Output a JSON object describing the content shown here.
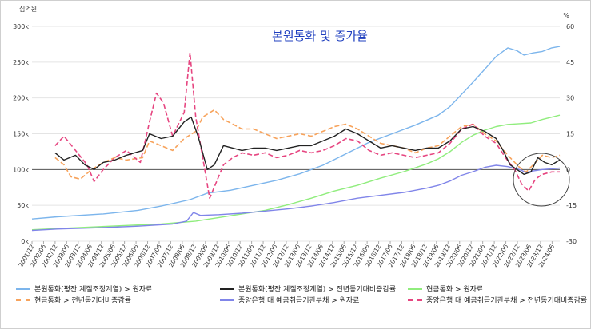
{
  "chart_data": {
    "type": "line",
    "title": "본원통화 및 증가율",
    "left_axis_unit": "십억원",
    "right_axis_unit": "%",
    "left_ticks": [
      {
        "v": 0,
        "label": "0k"
      },
      {
        "v": 50,
        "label": "50k"
      },
      {
        "v": 100,
        "label": "100k"
      },
      {
        "v": 150,
        "label": "150k"
      },
      {
        "v": 200,
        "label": "200k"
      },
      {
        "v": 250,
        "label": "250k"
      },
      {
        "v": 300,
        "label": "300k"
      }
    ],
    "right_ticks": [
      {
        "v": -30,
        "label": "-30"
      },
      {
        "v": -15,
        "label": "-15"
      },
      {
        "v": 0,
        "label": "0"
      },
      {
        "v": 15,
        "label": "15"
      },
      {
        "v": 30,
        "label": "30"
      },
      {
        "v": 45,
        "label": "45"
      },
      {
        "v": 60,
        "label": "60"
      }
    ],
    "left_ylim": [
      0,
      300
    ],
    "right_ylim": [
      -30,
      60
    ],
    "x_range": [
      2001.917,
      2024.75
    ],
    "x_ticks": [
      "2001/12",
      "2002/06",
      "2002/12",
      "2003/06",
      "2003/12",
      "2004/06",
      "2004/12",
      "2005/06",
      "2005/12",
      "2006/06",
      "2006/12",
      "2007/06",
      "2007/12",
      "2008/06",
      "2008/12",
      "2009/06",
      "2009/12",
      "2010/06",
      "2010/12",
      "2011/06",
      "2011/12",
      "2012/06",
      "2012/12",
      "2013/06",
      "2013/12",
      "2014/06",
      "2014/12",
      "2015/06",
      "2015/12",
      "2016/06",
      "2016/12",
      "2017/06",
      "2017/12",
      "2018/06",
      "2018/12",
      "2019/06",
      "2019/12",
      "2020/06",
      "2020/12",
      "2021/06",
      "2021/12",
      "2022/06",
      "2022/12",
      "2023/06",
      "2023/12",
      "2024/06"
    ],
    "series": [
      {
        "name": "본원통화(평잔,계절조정계열) > 원자료",
        "axis": "left",
        "color": "#7cb5ec",
        "dash": false,
        "points": [
          [
            2001.917,
            31
          ],
          [
            2003,
            34
          ],
          [
            2005,
            38
          ],
          [
            2006.5,
            43
          ],
          [
            2007.5,
            49
          ],
          [
            2008.75,
            58
          ],
          [
            2009.5,
            67
          ],
          [
            2010.5,
            71
          ],
          [
            2011.5,
            78
          ],
          [
            2012.5,
            85
          ],
          [
            2013.5,
            94
          ],
          [
            2014.5,
            106
          ],
          [
            2015.5,
            122
          ],
          [
            2016.5,
            138
          ],
          [
            2017.5,
            150
          ],
          [
            2018.5,
            162
          ],
          [
            2019.5,
            176
          ],
          [
            2020,
            188
          ],
          [
            2020.5,
            205
          ],
          [
            2021,
            222
          ],
          [
            2021.5,
            240
          ],
          [
            2022,
            258
          ],
          [
            2022.5,
            270
          ],
          [
            2022.9,
            266
          ],
          [
            2023.2,
            260
          ],
          [
            2023.6,
            263
          ],
          [
            2024,
            265
          ],
          [
            2024.4,
            270
          ],
          [
            2024.75,
            272
          ]
        ]
      },
      {
        "name": "본원통화(평잔,계절조정계열) > 전년동기대비증감률",
        "axis": "right",
        "color": "#222222",
        "dash": false,
        "points": [
          [
            2002.917,
            7
          ],
          [
            2003.3,
            4
          ],
          [
            2003.8,
            6
          ],
          [
            2004.2,
            2
          ],
          [
            2004.6,
            0
          ],
          [
            2005,
            3
          ],
          [
            2005.5,
            4
          ],
          [
            2006,
            6
          ],
          [
            2006.7,
            8
          ],
          [
            2007,
            15
          ],
          [
            2007.5,
            13
          ],
          [
            2008,
            14
          ],
          [
            2008.5,
            20
          ],
          [
            2008.8,
            22
          ],
          [
            2009.1,
            14
          ],
          [
            2009.5,
            0
          ],
          [
            2009.8,
            2
          ],
          [
            2010.2,
            10
          ],
          [
            2010.6,
            9
          ],
          [
            2011,
            8
          ],
          [
            2011.5,
            9
          ],
          [
            2012,
            9
          ],
          [
            2012.5,
            8
          ],
          [
            2013,
            9
          ],
          [
            2013.5,
            10
          ],
          [
            2014,
            10
          ],
          [
            2014.5,
            12
          ],
          [
            2015,
            14
          ],
          [
            2015.5,
            17
          ],
          [
            2016,
            15
          ],
          [
            2016.5,
            12
          ],
          [
            2017,
            9
          ],
          [
            2017.5,
            10
          ],
          [
            2018,
            9
          ],
          [
            2018.5,
            8
          ],
          [
            2019,
            9
          ],
          [
            2019.5,
            9
          ],
          [
            2020,
            12
          ],
          [
            2020.5,
            17
          ],
          [
            2021,
            18
          ],
          [
            2021.5,
            16
          ],
          [
            2022,
            13
          ],
          [
            2022.3,
            8
          ],
          [
            2022.6,
            2
          ],
          [
            2022.9,
            0
          ],
          [
            2023.2,
            -2
          ],
          [
            2023.5,
            -1
          ],
          [
            2023.8,
            5
          ],
          [
            2024.1,
            3
          ],
          [
            2024.4,
            2
          ],
          [
            2024.75,
            4
          ]
        ]
      },
      {
        "name": "현금통화 > 원자료",
        "axis": "left",
        "color": "#90ed7d",
        "dash": false,
        "points": [
          [
            2001.917,
            16
          ],
          [
            2004,
            19
          ],
          [
            2006,
            22
          ],
          [
            2007.5,
            24
          ],
          [
            2009,
            28
          ],
          [
            2010,
            33
          ],
          [
            2011,
            38
          ],
          [
            2012,
            43
          ],
          [
            2013,
            51
          ],
          [
            2014,
            60
          ],
          [
            2015,
            70
          ],
          [
            2016,
            78
          ],
          [
            2017,
            88
          ],
          [
            2018,
            97
          ],
          [
            2019,
            108
          ],
          [
            2019.5,
            115
          ],
          [
            2020,
            125
          ],
          [
            2020.5,
            138
          ],
          [
            2021,
            148
          ],
          [
            2021.5,
            155
          ],
          [
            2022,
            160
          ],
          [
            2022.5,
            163
          ],
          [
            2023,
            164
          ],
          [
            2023.5,
            165
          ],
          [
            2024,
            170
          ],
          [
            2024.75,
            176
          ]
        ]
      },
      {
        "name": "현금통화 > 전년동기대비증감률",
        "axis": "right",
        "color": "#f7a35c",
        "dash": true,
        "points": [
          [
            2002.917,
            5
          ],
          [
            2003.3,
            2
          ],
          [
            2003.6,
            -3
          ],
          [
            2004,
            -4
          ],
          [
            2004.5,
            0
          ],
          [
            2005,
            3
          ],
          [
            2005.5,
            5
          ],
          [
            2006,
            4
          ],
          [
            2006.7,
            5
          ],
          [
            2007,
            12
          ],
          [
            2007.5,
            10
          ],
          [
            2008,
            8
          ],
          [
            2008.5,
            13
          ],
          [
            2009,
            16
          ],
          [
            2009.3,
            22
          ],
          [
            2009.8,
            25
          ],
          [
            2010.2,
            21
          ],
          [
            2010.6,
            19
          ],
          [
            2011,
            17
          ],
          [
            2011.5,
            17
          ],
          [
            2012,
            15
          ],
          [
            2012.5,
            13
          ],
          [
            2013,
            14
          ],
          [
            2013.5,
            15
          ],
          [
            2014,
            14
          ],
          [
            2014.5,
            16
          ],
          [
            2015,
            18
          ],
          [
            2015.5,
            19
          ],
          [
            2016,
            17
          ],
          [
            2016.5,
            14
          ],
          [
            2017,
            11
          ],
          [
            2017.5,
            10
          ],
          [
            2018,
            9
          ],
          [
            2018.5,
            7
          ],
          [
            2019,
            9
          ],
          [
            2019.5,
            10
          ],
          [
            2020,
            14
          ],
          [
            2020.5,
            18
          ],
          [
            2021,
            19
          ],
          [
            2021.5,
            15
          ],
          [
            2022,
            12
          ],
          [
            2022.5,
            6
          ],
          [
            2023,
            1
          ],
          [
            2023.3,
            -1
          ],
          [
            2023.7,
            3
          ],
          [
            2024,
            6
          ],
          [
            2024.4,
            5
          ],
          [
            2024.75,
            6
          ]
        ]
      },
      {
        "name": "중앙은행 대 예금취급기관부채 > 원자료",
        "axis": "left",
        "color": "#8085e9",
        "dash": false,
        "points": [
          [
            2001.917,
            15
          ],
          [
            2003,
            17
          ],
          [
            2005,
            19
          ],
          [
            2006.5,
            21
          ],
          [
            2008,
            24
          ],
          [
            2008.6,
            28
          ],
          [
            2008.9,
            40
          ],
          [
            2009.2,
            36
          ],
          [
            2010,
            37
          ],
          [
            2011,
            39
          ],
          [
            2012,
            42
          ],
          [
            2013,
            45
          ],
          [
            2014,
            49
          ],
          [
            2015,
            54
          ],
          [
            2016,
            60
          ],
          [
            2017,
            64
          ],
          [
            2018,
            68
          ],
          [
            2019,
            74
          ],
          [
            2019.5,
            78
          ],
          [
            2020,
            84
          ],
          [
            2020.5,
            92
          ],
          [
            2021,
            97
          ],
          [
            2021.5,
            103
          ],
          [
            2022,
            106
          ],
          [
            2022.5,
            104
          ],
          [
            2023,
            100
          ],
          [
            2023.3,
            96
          ],
          [
            2023.6,
            98
          ],
          [
            2024,
            100
          ],
          [
            2024.4,
            101
          ],
          [
            2024.75,
            102
          ]
        ]
      },
      {
        "name": "중앙은행 대 예금취급기관부채 > 전년동기대비증감률",
        "axis": "right",
        "color": "#e64580",
        "dash": true,
        "points": [
          [
            2002.917,
            10
          ],
          [
            2003.3,
            14
          ],
          [
            2003.8,
            8
          ],
          [
            2004.3,
            2
          ],
          [
            2004.6,
            -5
          ],
          [
            2005,
            0
          ],
          [
            2005.5,
            5
          ],
          [
            2006,
            8
          ],
          [
            2006.6,
            3
          ],
          [
            2007,
            20
          ],
          [
            2007.3,
            32
          ],
          [
            2007.6,
            28
          ],
          [
            2008,
            14
          ],
          [
            2008.5,
            24
          ],
          [
            2008.75,
            49
          ],
          [
            2009,
            22
          ],
          [
            2009.3,
            5
          ],
          [
            2009.6,
            -12
          ],
          [
            2009.9,
            -5
          ],
          [
            2010.2,
            2
          ],
          [
            2010.6,
            5
          ],
          [
            2011,
            7
          ],
          [
            2011.5,
            6
          ],
          [
            2012,
            7
          ],
          [
            2012.5,
            5
          ],
          [
            2013,
            6
          ],
          [
            2013.5,
            8
          ],
          [
            2014,
            7
          ],
          [
            2014.5,
            8
          ],
          [
            2015,
            10
          ],
          [
            2015.5,
            13
          ],
          [
            2016,
            12
          ],
          [
            2016.5,
            8
          ],
          [
            2017,
            6
          ],
          [
            2017.5,
            7
          ],
          [
            2018,
            6
          ],
          [
            2018.5,
            5
          ],
          [
            2019,
            6
          ],
          [
            2019.5,
            7
          ],
          [
            2020,
            11
          ],
          [
            2020.5,
            17
          ],
          [
            2021,
            19
          ],
          [
            2021.5,
            14
          ],
          [
            2022,
            11
          ],
          [
            2022.4,
            5
          ],
          [
            2022.8,
            0
          ],
          [
            2023.1,
            -6
          ],
          [
            2023.4,
            -9
          ],
          [
            2023.7,
            -4
          ],
          [
            2024,
            -2
          ],
          [
            2024.4,
            -1
          ],
          [
            2024.75,
            -1
          ]
        ]
      }
    ]
  }
}
